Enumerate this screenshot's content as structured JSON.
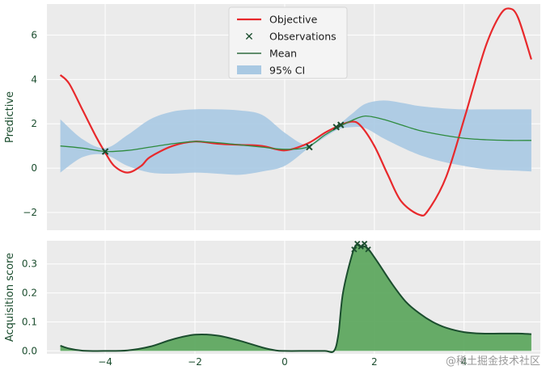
{
  "chart_data": [
    {
      "type": "line",
      "ylabel": "Predictive",
      "xlabel": "",
      "xlim": [
        -5.3,
        5.7
      ],
      "ylim": [
        -2.8,
        7.4
      ],
      "xticks": [
        -4,
        -2,
        0,
        2,
        4
      ],
      "yticks": [
        -2,
        0,
        2,
        4,
        6
      ],
      "ytick_labels": [
        "−2",
        "0",
        "2",
        "4",
        "6"
      ],
      "grid": true,
      "legend": {
        "position": "top-center",
        "entries": [
          "Objective",
          "Observations",
          "Mean",
          "95% CI"
        ]
      },
      "series": [
        {
          "name": "Objective",
          "color": "#e8292c",
          "x": [
            -5.0,
            -4.8,
            -4.5,
            -4.2,
            -4.0,
            -3.8,
            -3.5,
            -3.2,
            -3.0,
            -2.5,
            -2.0,
            -1.5,
            -1.0,
            -0.5,
            0.0,
            0.5,
            0.9,
            1.2,
            1.5,
            1.7,
            2.0,
            2.3,
            2.6,
            3.0,
            3.2,
            3.6,
            4.0,
            4.2,
            4.5,
            4.8,
            5.0,
            5.2,
            5.5
          ],
          "y": [
            4.2,
            3.8,
            2.6,
            1.4,
            0.7,
            0.1,
            -0.2,
            0.1,
            0.5,
            1.0,
            1.2,
            1.1,
            1.05,
            1.0,
            0.8,
            1.1,
            1.6,
            1.9,
            2.1,
            1.9,
            1.0,
            -0.3,
            -1.5,
            -2.1,
            -1.9,
            -0.4,
            2.2,
            3.6,
            5.6,
            6.9,
            7.2,
            6.8,
            4.9
          ]
        },
        {
          "name": "Mean",
          "color": "#2e8b3e",
          "x": [
            -5.0,
            -4.5,
            -4.0,
            -3.5,
            -3.0,
            -2.5,
            -2.0,
            -1.5,
            -1.0,
            -0.5,
            0.0,
            0.5,
            0.9,
            1.2,
            1.5,
            1.8,
            2.2,
            2.6,
            3.0,
            3.5,
            4.0,
            4.5,
            5.0,
            5.5
          ],
          "y": [
            1.0,
            0.9,
            0.75,
            0.8,
            0.95,
            1.1,
            1.2,
            1.15,
            1.05,
            0.95,
            0.85,
            0.95,
            1.5,
            1.85,
            2.15,
            2.35,
            2.2,
            1.95,
            1.7,
            1.5,
            1.35,
            1.28,
            1.25,
            1.25
          ]
        }
      ],
      "ci_95": {
        "name": "95% CI",
        "color": "#a9c9e3",
        "x": [
          -5.0,
          -4.5,
          -4.0,
          -3.5,
          -3.0,
          -2.5,
          -2.0,
          -1.5,
          -1.0,
          -0.5,
          0.0,
          0.5,
          0.9,
          1.2,
          1.5,
          1.8,
          2.2,
          2.6,
          3.0,
          3.5,
          4.0,
          4.5,
          5.0,
          5.5
        ],
        "upper": [
          2.2,
          1.3,
          0.9,
          1.5,
          2.2,
          2.55,
          2.65,
          2.65,
          2.6,
          2.4,
          1.6,
          1.05,
          1.6,
          1.95,
          2.45,
          2.9,
          3.05,
          2.95,
          2.8,
          2.7,
          2.65,
          2.65,
          2.65,
          2.65
        ],
        "lower": [
          -0.2,
          0.5,
          0.6,
          0.1,
          -0.2,
          -0.25,
          -0.2,
          -0.25,
          -0.3,
          -0.15,
          0.1,
          0.85,
          1.4,
          1.75,
          1.85,
          1.8,
          1.35,
          0.95,
          0.6,
          0.3,
          0.1,
          -0.05,
          -0.1,
          -0.15
        ]
      },
      "observations": {
        "name": "Observations",
        "color": "#1b4d2e",
        "x": [
          -4.0,
          0.55,
          1.15,
          1.25
        ],
        "y": [
          0.75,
          0.95,
          1.85,
          1.95
        ]
      }
    },
    {
      "type": "area",
      "ylabel": "Acquisition score",
      "xlim": [
        -5.3,
        5.7
      ],
      "ylim": [
        -0.01,
        0.38
      ],
      "xticks": [
        -4,
        -2,
        0,
        2,
        4
      ],
      "xtick_labels": [
        "−4",
        "−2",
        "0",
        "2",
        "4"
      ],
      "yticks": [
        0.0,
        0.1,
        0.2,
        0.3
      ],
      "ytick_labels": [
        "0.0",
        "0.1",
        "0.2",
        "0.3"
      ],
      "grid": true,
      "series": [
        {
          "color": "#5fa860",
          "edge_color": "#1b4d2e",
          "x": [
            -5.0,
            -4.8,
            -4.5,
            -4.0,
            -3.5,
            -3.0,
            -2.5,
            -2.0,
            -1.5,
            -1.0,
            -0.5,
            -0.2,
            0.0,
            0.5,
            0.9,
            1.1,
            1.2,
            1.3,
            1.5,
            1.6,
            1.7,
            1.8,
            1.9,
            2.1,
            2.4,
            2.7,
            3.0,
            3.3,
            3.6,
            4.0,
            4.4,
            4.8,
            5.2,
            5.5
          ],
          "y": [
            0.018,
            0.008,
            0.001,
            0.0,
            0.002,
            0.015,
            0.04,
            0.056,
            0.053,
            0.035,
            0.012,
            0.002,
            0.0,
            0.0,
            0.0,
            0.0,
            0.06,
            0.2,
            0.33,
            0.365,
            0.358,
            0.36,
            0.345,
            0.3,
            0.23,
            0.17,
            0.13,
            0.1,
            0.08,
            0.065,
            0.06,
            0.06,
            0.06,
            0.058
          ]
        }
      ],
      "observations": {
        "x": [
          1.55,
          1.62,
          1.7,
          1.78,
          1.86
        ],
        "y": [
          0.35,
          0.37,
          0.36,
          0.37,
          0.35
        ]
      }
    }
  ],
  "legend": {
    "objective_label": "Objective",
    "observations_label": "Observations",
    "mean_label": "Mean",
    "ci_label": "95% CI"
  },
  "watermark": "@稀土掘金技术社区"
}
